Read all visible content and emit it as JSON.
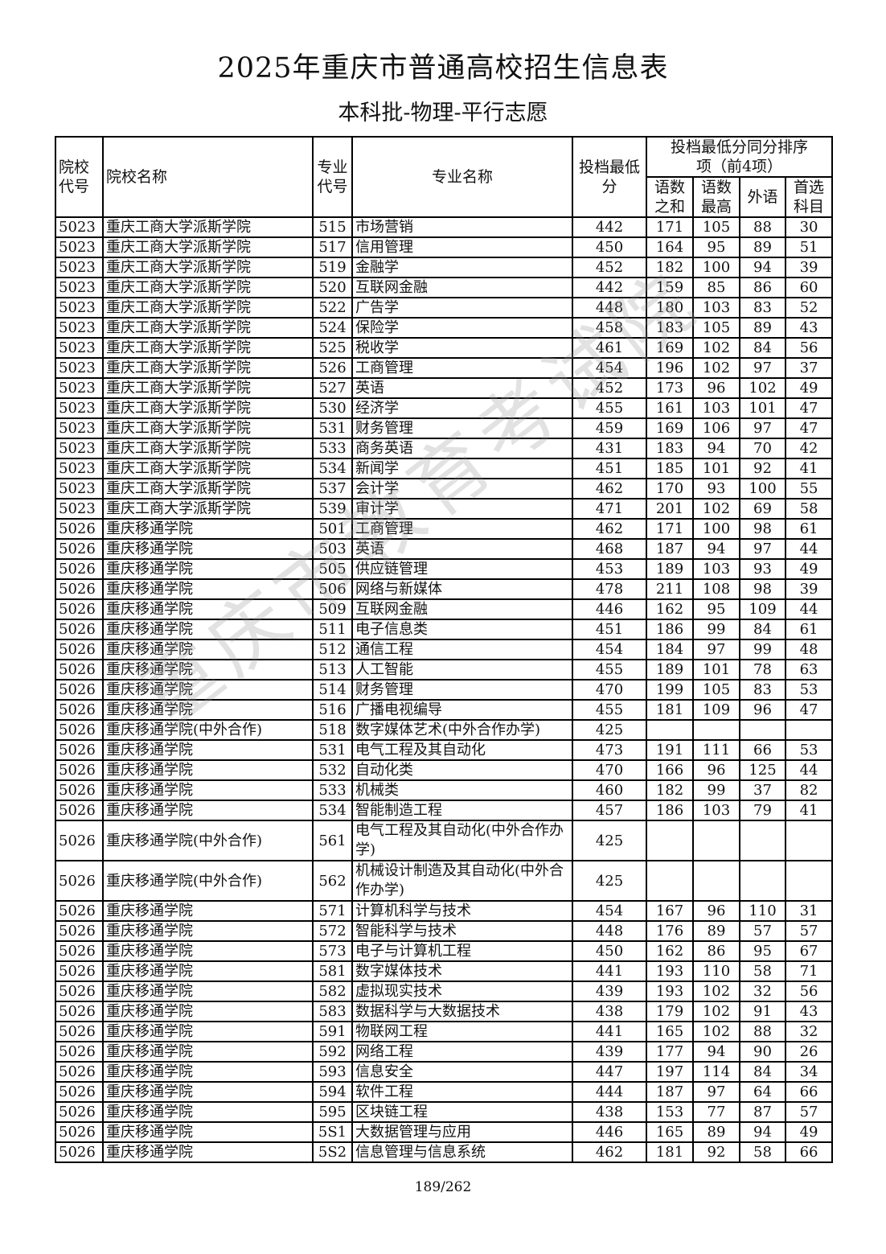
{
  "title": "2025年重庆市普通高校招生信息表",
  "subtitle": "本科批-物理-平行志愿",
  "watermark": "重庆市教育考试院",
  "headers": {
    "school_code": "院校代号",
    "school_name": "院校名称",
    "major_code": "专业代号",
    "major_name": "专业名称",
    "min_score": "投档最低分",
    "tiebreak_group": "投档最低分同分排序项（前4项）",
    "tiebreak": [
      "语数之和",
      "语数最高",
      "外语",
      "首选科目"
    ]
  },
  "rows": [
    [
      "5023",
      "重庆工商大学派斯学院",
      "515",
      "市场营销",
      "442",
      "171",
      "105",
      "88",
      "30"
    ],
    [
      "5023",
      "重庆工商大学派斯学院",
      "517",
      "信用管理",
      "450",
      "164",
      "95",
      "89",
      "51"
    ],
    [
      "5023",
      "重庆工商大学派斯学院",
      "519",
      "金融学",
      "452",
      "182",
      "100",
      "94",
      "39"
    ],
    [
      "5023",
      "重庆工商大学派斯学院",
      "520",
      "互联网金融",
      "442",
      "159",
      "85",
      "86",
      "60"
    ],
    [
      "5023",
      "重庆工商大学派斯学院",
      "522",
      "广告学",
      "448",
      "180",
      "103",
      "83",
      "52"
    ],
    [
      "5023",
      "重庆工商大学派斯学院",
      "524",
      "保险学",
      "458",
      "183",
      "105",
      "89",
      "43"
    ],
    [
      "5023",
      "重庆工商大学派斯学院",
      "525",
      "税收学",
      "461",
      "169",
      "102",
      "84",
      "56"
    ],
    [
      "5023",
      "重庆工商大学派斯学院",
      "526",
      "工商管理",
      "454",
      "196",
      "102",
      "97",
      "37"
    ],
    [
      "5023",
      "重庆工商大学派斯学院",
      "527",
      "英语",
      "452",
      "173",
      "96",
      "102",
      "49"
    ],
    [
      "5023",
      "重庆工商大学派斯学院",
      "530",
      "经济学",
      "455",
      "161",
      "103",
      "101",
      "47"
    ],
    [
      "5023",
      "重庆工商大学派斯学院",
      "531",
      "财务管理",
      "459",
      "169",
      "106",
      "97",
      "47"
    ],
    [
      "5023",
      "重庆工商大学派斯学院",
      "533",
      "商务英语",
      "431",
      "183",
      "94",
      "70",
      "42"
    ],
    [
      "5023",
      "重庆工商大学派斯学院",
      "534",
      "新闻学",
      "451",
      "185",
      "101",
      "92",
      "41"
    ],
    [
      "5023",
      "重庆工商大学派斯学院",
      "537",
      "会计学",
      "462",
      "170",
      "93",
      "100",
      "55"
    ],
    [
      "5023",
      "重庆工商大学派斯学院",
      "539",
      "审计学",
      "471",
      "201",
      "102",
      "69",
      "58"
    ],
    [
      "5026",
      "重庆移通学院",
      "501",
      "工商管理",
      "462",
      "171",
      "100",
      "98",
      "61"
    ],
    [
      "5026",
      "重庆移通学院",
      "503",
      "英语",
      "468",
      "187",
      "94",
      "97",
      "44"
    ],
    [
      "5026",
      "重庆移通学院",
      "505",
      "供应链管理",
      "453",
      "189",
      "103",
      "93",
      "49"
    ],
    [
      "5026",
      "重庆移通学院",
      "506",
      "网络与新媒体",
      "478",
      "211",
      "108",
      "98",
      "39"
    ],
    [
      "5026",
      "重庆移通学院",
      "509",
      "互联网金融",
      "446",
      "162",
      "95",
      "109",
      "44"
    ],
    [
      "5026",
      "重庆移通学院",
      "511",
      "电子信息类",
      "451",
      "186",
      "99",
      "84",
      "61"
    ],
    [
      "5026",
      "重庆移通学院",
      "512",
      "通信工程",
      "454",
      "184",
      "97",
      "99",
      "48"
    ],
    [
      "5026",
      "重庆移通学院",
      "513",
      "人工智能",
      "455",
      "189",
      "101",
      "78",
      "63"
    ],
    [
      "5026",
      "重庆移通学院",
      "514",
      "财务管理",
      "470",
      "199",
      "105",
      "83",
      "53"
    ],
    [
      "5026",
      "重庆移通学院",
      "516",
      "广播电视编导",
      "455",
      "181",
      "109",
      "96",
      "47"
    ],
    [
      "5026",
      "重庆移通学院(中外合作)",
      "518",
      "数字媒体艺术(中外合作办学)",
      "425",
      "",
      "",
      "",
      ""
    ],
    [
      "5026",
      "重庆移通学院",
      "531",
      "电气工程及其自动化",
      "473",
      "191",
      "111",
      "66",
      "53"
    ],
    [
      "5026",
      "重庆移通学院",
      "532",
      "自动化类",
      "470",
      "166",
      "96",
      "125",
      "44"
    ],
    [
      "5026",
      "重庆移通学院",
      "533",
      "机械类",
      "460",
      "182",
      "99",
      "37",
      "82"
    ],
    [
      "5026",
      "重庆移通学院",
      "534",
      "智能制造工程",
      "457",
      "186",
      "103",
      "79",
      "41"
    ],
    [
      "5026",
      "重庆移通学院(中外合作)",
      "561",
      "电气工程及其自动化(中外合作办学)",
      "425",
      "",
      "",
      "",
      ""
    ],
    [
      "5026",
      "重庆移通学院(中外合作)",
      "562",
      "机械设计制造及其自动化(中外合作办学)",
      "425",
      "",
      "",
      "",
      ""
    ],
    [
      "5026",
      "重庆移通学院",
      "571",
      "计算机科学与技术",
      "454",
      "167",
      "96",
      "110",
      "31"
    ],
    [
      "5026",
      "重庆移通学院",
      "572",
      "智能科学与技术",
      "448",
      "176",
      "89",
      "57",
      "57"
    ],
    [
      "5026",
      "重庆移通学院",
      "573",
      "电子与计算机工程",
      "450",
      "162",
      "86",
      "95",
      "67"
    ],
    [
      "5026",
      "重庆移通学院",
      "581",
      "数字媒体技术",
      "441",
      "193",
      "110",
      "58",
      "71"
    ],
    [
      "5026",
      "重庆移通学院",
      "582",
      "虚拟现实技术",
      "439",
      "193",
      "102",
      "32",
      "56"
    ],
    [
      "5026",
      "重庆移通学院",
      "583",
      "数据科学与大数据技术",
      "438",
      "179",
      "102",
      "91",
      "43"
    ],
    [
      "5026",
      "重庆移通学院",
      "591",
      "物联网工程",
      "441",
      "165",
      "102",
      "88",
      "32"
    ],
    [
      "5026",
      "重庆移通学院",
      "592",
      "网络工程",
      "439",
      "177",
      "94",
      "90",
      "26"
    ],
    [
      "5026",
      "重庆移通学院",
      "593",
      "信息安全",
      "447",
      "197",
      "114",
      "84",
      "34"
    ],
    [
      "5026",
      "重庆移通学院",
      "594",
      "软件工程",
      "444",
      "187",
      "97",
      "64",
      "66"
    ],
    [
      "5026",
      "重庆移通学院",
      "595",
      "区块链工程",
      "438",
      "153",
      "77",
      "87",
      "57"
    ],
    [
      "5026",
      "重庆移通学院",
      "5S1",
      "大数据管理与应用",
      "446",
      "165",
      "89",
      "94",
      "49"
    ],
    [
      "5026",
      "重庆移通学院",
      "5S2",
      "信息管理与信息系统",
      "462",
      "181",
      "92",
      "58",
      "66"
    ]
  ],
  "page_number": "189/262"
}
